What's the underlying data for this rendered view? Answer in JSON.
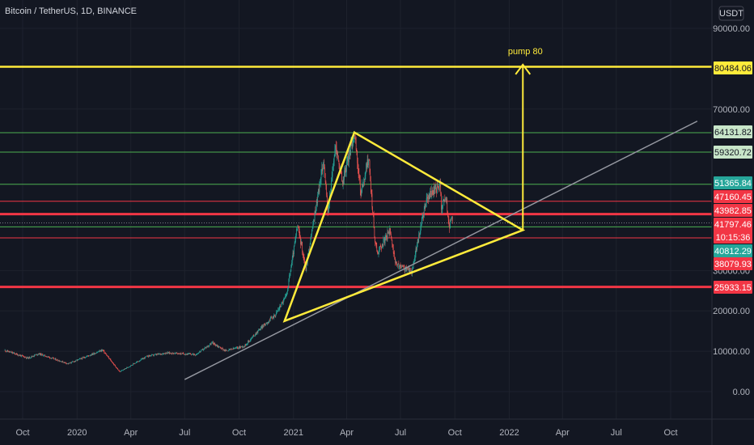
{
  "header": {
    "title": "Bitcoin / TetherUS, 1D, BINANCE",
    "currency": "USDT"
  },
  "colors": {
    "background": "#131722",
    "up": "#26a69a",
    "down": "#ef5350",
    "yellow": "#ffeb3b",
    "green_line": "#4caf50",
    "red_line": "#f23645",
    "gray_line": "#9598a1"
  },
  "chart_data": {
    "type": "candlestick",
    "symbol": "Bitcoin / TetherUS, 1D, BINANCE",
    "ylim": [
      -4000,
      95000
    ],
    "y_ticks": [
      "90000.00",
      "70000.00",
      "30000.00",
      "20000.00",
      "10000.00",
      "0.00"
    ],
    "x_ticks": [
      "Oct",
      "2020",
      "Apr",
      "Jul",
      "Oct",
      "2021",
      "Apr",
      "Jul",
      "Oct",
      "2022",
      "Apr",
      "Jul",
      "Oct"
    ],
    "x_tick_dates": [
      "2019-10-01",
      "2020-01-01",
      "2020-04-01",
      "2020-07-01",
      "2020-10-01",
      "2021-01-01",
      "2021-04-01",
      "2021-07-01",
      "2021-10-01",
      "2022-01-01",
      "2022-04-01",
      "2022-07-01",
      "2022-10-01"
    ],
    "price_path": [
      [
        "2019-09-01",
        10200
      ],
      [
        "2019-10-10",
        8300
      ],
      [
        "2019-10-28",
        9400
      ],
      [
        "2019-12-17",
        6900
      ],
      [
        "2020-02-13",
        10300
      ],
      [
        "2020-03-13",
        4900
      ],
      [
        "2020-04-29",
        8800
      ],
      [
        "2020-06-01",
        9600
      ],
      [
        "2020-07-20",
        9200
      ],
      [
        "2020-08-17",
        12100
      ],
      [
        "2020-09-08",
        10100
      ],
      [
        "2020-10-10",
        11300
      ],
      [
        "2020-11-05",
        15500
      ],
      [
        "2020-12-01",
        19000
      ],
      [
        "2020-12-20",
        23800
      ],
      [
        "2021-01-08",
        41000
      ],
      [
        "2021-01-22",
        30500
      ],
      [
        "2021-02-21",
        57500
      ],
      [
        "2021-02-28",
        44000
      ],
      [
        "2021-03-13",
        61000
      ],
      [
        "2021-03-25",
        52000
      ],
      [
        "2021-04-14",
        64000
      ],
      [
        "2021-04-25",
        49000
      ],
      [
        "2021-05-08",
        58000
      ],
      [
        "2021-05-19",
        37000
      ],
      [
        "2021-05-23",
        34500
      ],
      [
        "2021-06-14",
        40000
      ],
      [
        "2021-06-22",
        31500
      ],
      [
        "2021-07-20",
        29800
      ],
      [
        "2021-08-13",
        47000
      ],
      [
        "2021-08-22",
        49300
      ],
      [
        "2021-09-06",
        51000
      ],
      [
        "2021-09-08",
        46000
      ],
      [
        "2021-09-16",
        48200
      ],
      [
        "2021-09-21",
        40800
      ],
      [
        "2021-09-27",
        43000
      ]
    ],
    "horizontal_levels": [
      {
        "label": "80484.06",
        "value": 80484.06,
        "kind": "yellow"
      },
      {
        "label": "64131.82",
        "value": 64131.82,
        "kind": "green"
      },
      {
        "label": "59320.72",
        "value": 59320.72,
        "kind": "green"
      },
      {
        "label": "51365.84",
        "value": 51365.84,
        "kind": "green"
      },
      {
        "label": "47160.45",
        "value": 47160.45,
        "kind": "red"
      },
      {
        "label": "43982.85",
        "value": 43982.85,
        "kind": "red_thick"
      },
      {
        "label": "41797.46",
        "value": 41797.46,
        "kind": "dotted"
      },
      {
        "label": "40812.29",
        "value": 40812.29,
        "kind": "green"
      },
      {
        "label": "38079.93",
        "value": 38079.93,
        "kind": "red"
      },
      {
        "label": "25933.15",
        "value": 25933.15,
        "kind": "red_thick"
      }
    ],
    "countdown": "10:15:36",
    "triangle": [
      [
        "2020-12-17",
        17500
      ],
      [
        "2021-04-14",
        64200
      ],
      [
        "2022-01-24",
        40000
      ]
    ],
    "trendline": [
      [
        "2020-07-01",
        3000
      ],
      [
        "2022-11-15",
        67000
      ]
    ],
    "arrow": {
      "from": [
        "2022-01-24",
        40000
      ],
      "to": [
        "2022-01-24",
        81000
      ],
      "label": "pump 80"
    }
  }
}
